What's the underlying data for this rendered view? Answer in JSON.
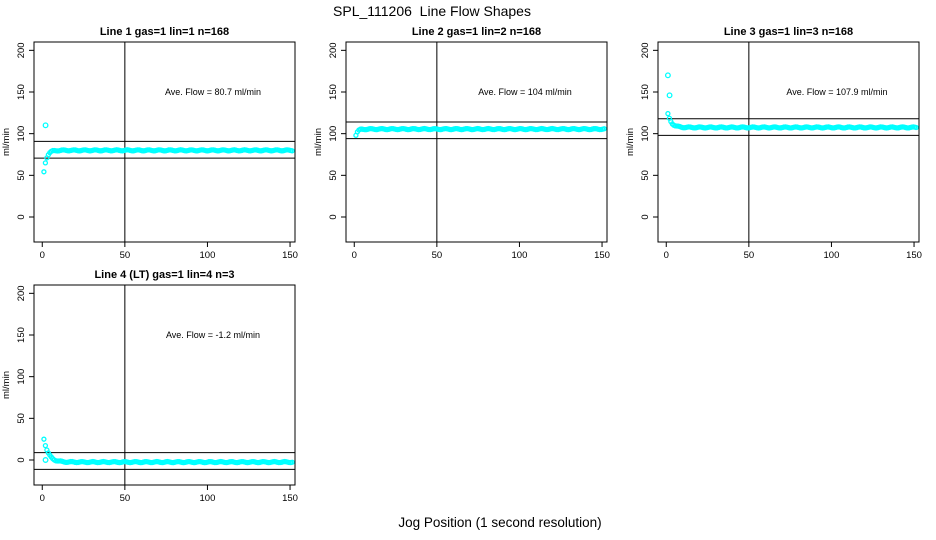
{
  "title": "SPL_111206  Line Flow Shapes",
  "xlabel": "Jog Position (1 second resolution)",
  "chart_data": [
    {
      "type": "scatter",
      "title": "Line 1 gas=1 lin=1 n=168",
      "ylabel": "ml/min",
      "annotation": "Ave. Flow =  80.7  ml/min",
      "ave_flow_ml_min": 80.7,
      "n": 168,
      "xlim": [
        -5,
        153
      ],
      "ylim": [
        -30,
        210
      ],
      "xticks": [
        0,
        50,
        100,
        150
      ],
      "yticks": [
        0,
        50,
        100,
        150,
        200
      ],
      "vline_x": 50,
      "hlines": [
        90.7,
        70.7
      ],
      "point_color": "#00FFFF",
      "axis_color": "#000000",
      "outlier_points": [
        [
          2,
          110
        ]
      ],
      "series_model": {
        "x_start": 1,
        "x_end": 151.3,
        "step": 0.9,
        "plateau": 80,
        "amplitude": -26,
        "decay": 1.6,
        "jitter": 0.6
      }
    },
    {
      "type": "scatter",
      "title": "Line 2 gas=1 lin=2 n=168",
      "ylabel": "ml/min",
      "annotation": "Ave. Flow =  104  ml/min",
      "ave_flow_ml_min": 104,
      "n": 168,
      "xlim": [
        -5,
        153
      ],
      "ylim": [
        -30,
        210
      ],
      "xticks": [
        0,
        50,
        100,
        150
      ],
      "yticks": [
        0,
        50,
        100,
        150,
        200
      ],
      "vline_x": 50,
      "hlines": [
        114,
        94
      ],
      "point_color": "#00FFFF",
      "axis_color": "#000000",
      "outlier_points": [],
      "series_model": {
        "x_start": 1,
        "x_end": 151.3,
        "step": 0.9,
        "plateau": 105.5,
        "amplitude": -7,
        "decay": 1.2,
        "jitter": 0.6
      }
    },
    {
      "type": "scatter",
      "title": "Line 3 gas=1 lin=3 n=168",
      "ylabel": "ml/min",
      "annotation": "Ave. Flow =  107.9  ml/min",
      "ave_flow_ml_min": 107.9,
      "n": 168,
      "xlim": [
        -5,
        153
      ],
      "ylim": [
        -30,
        210
      ],
      "xticks": [
        0,
        50,
        100,
        150
      ],
      "yticks": [
        0,
        50,
        100,
        150,
        200
      ],
      "vline_x": 50,
      "hlines": [
        117.9,
        97.9
      ],
      "point_color": "#00FFFF",
      "axis_color": "#000000",
      "outlier_points": [
        [
          1,
          170
        ],
        [
          2,
          146
        ]
      ],
      "series_model": {
        "x_start": 1,
        "x_end": 151.3,
        "step": 0.9,
        "plateau": 107.5,
        "amplitude": 16,
        "decay": 2.2,
        "jitter": 0.6
      }
    },
    {
      "type": "scatter",
      "title": "Line 4 (LT) gas=1 lin=4 n=3",
      "ylabel": "ml/min",
      "annotation": "Ave. Flow =  -1.2  ml/min",
      "ave_flow_ml_min": -1.2,
      "n": 3,
      "xlim": [
        -5,
        153
      ],
      "ylim": [
        -30,
        210
      ],
      "xticks": [
        0,
        50,
        100,
        150
      ],
      "yticks": [
        0,
        50,
        100,
        150,
        200
      ],
      "vline_x": 50,
      "hlines": [
        8.8,
        -11.2
      ],
      "point_color": "#00FFFF",
      "axis_color": "#000000",
      "outlier_points": [
        [
          2,
          0
        ]
      ],
      "series_model": {
        "x_start": 1,
        "x_end": 151.3,
        "step": 0.9,
        "plateau": -2.5,
        "amplitude": 28,
        "decay": 2.8,
        "jitter": 0.6
      }
    }
  ]
}
